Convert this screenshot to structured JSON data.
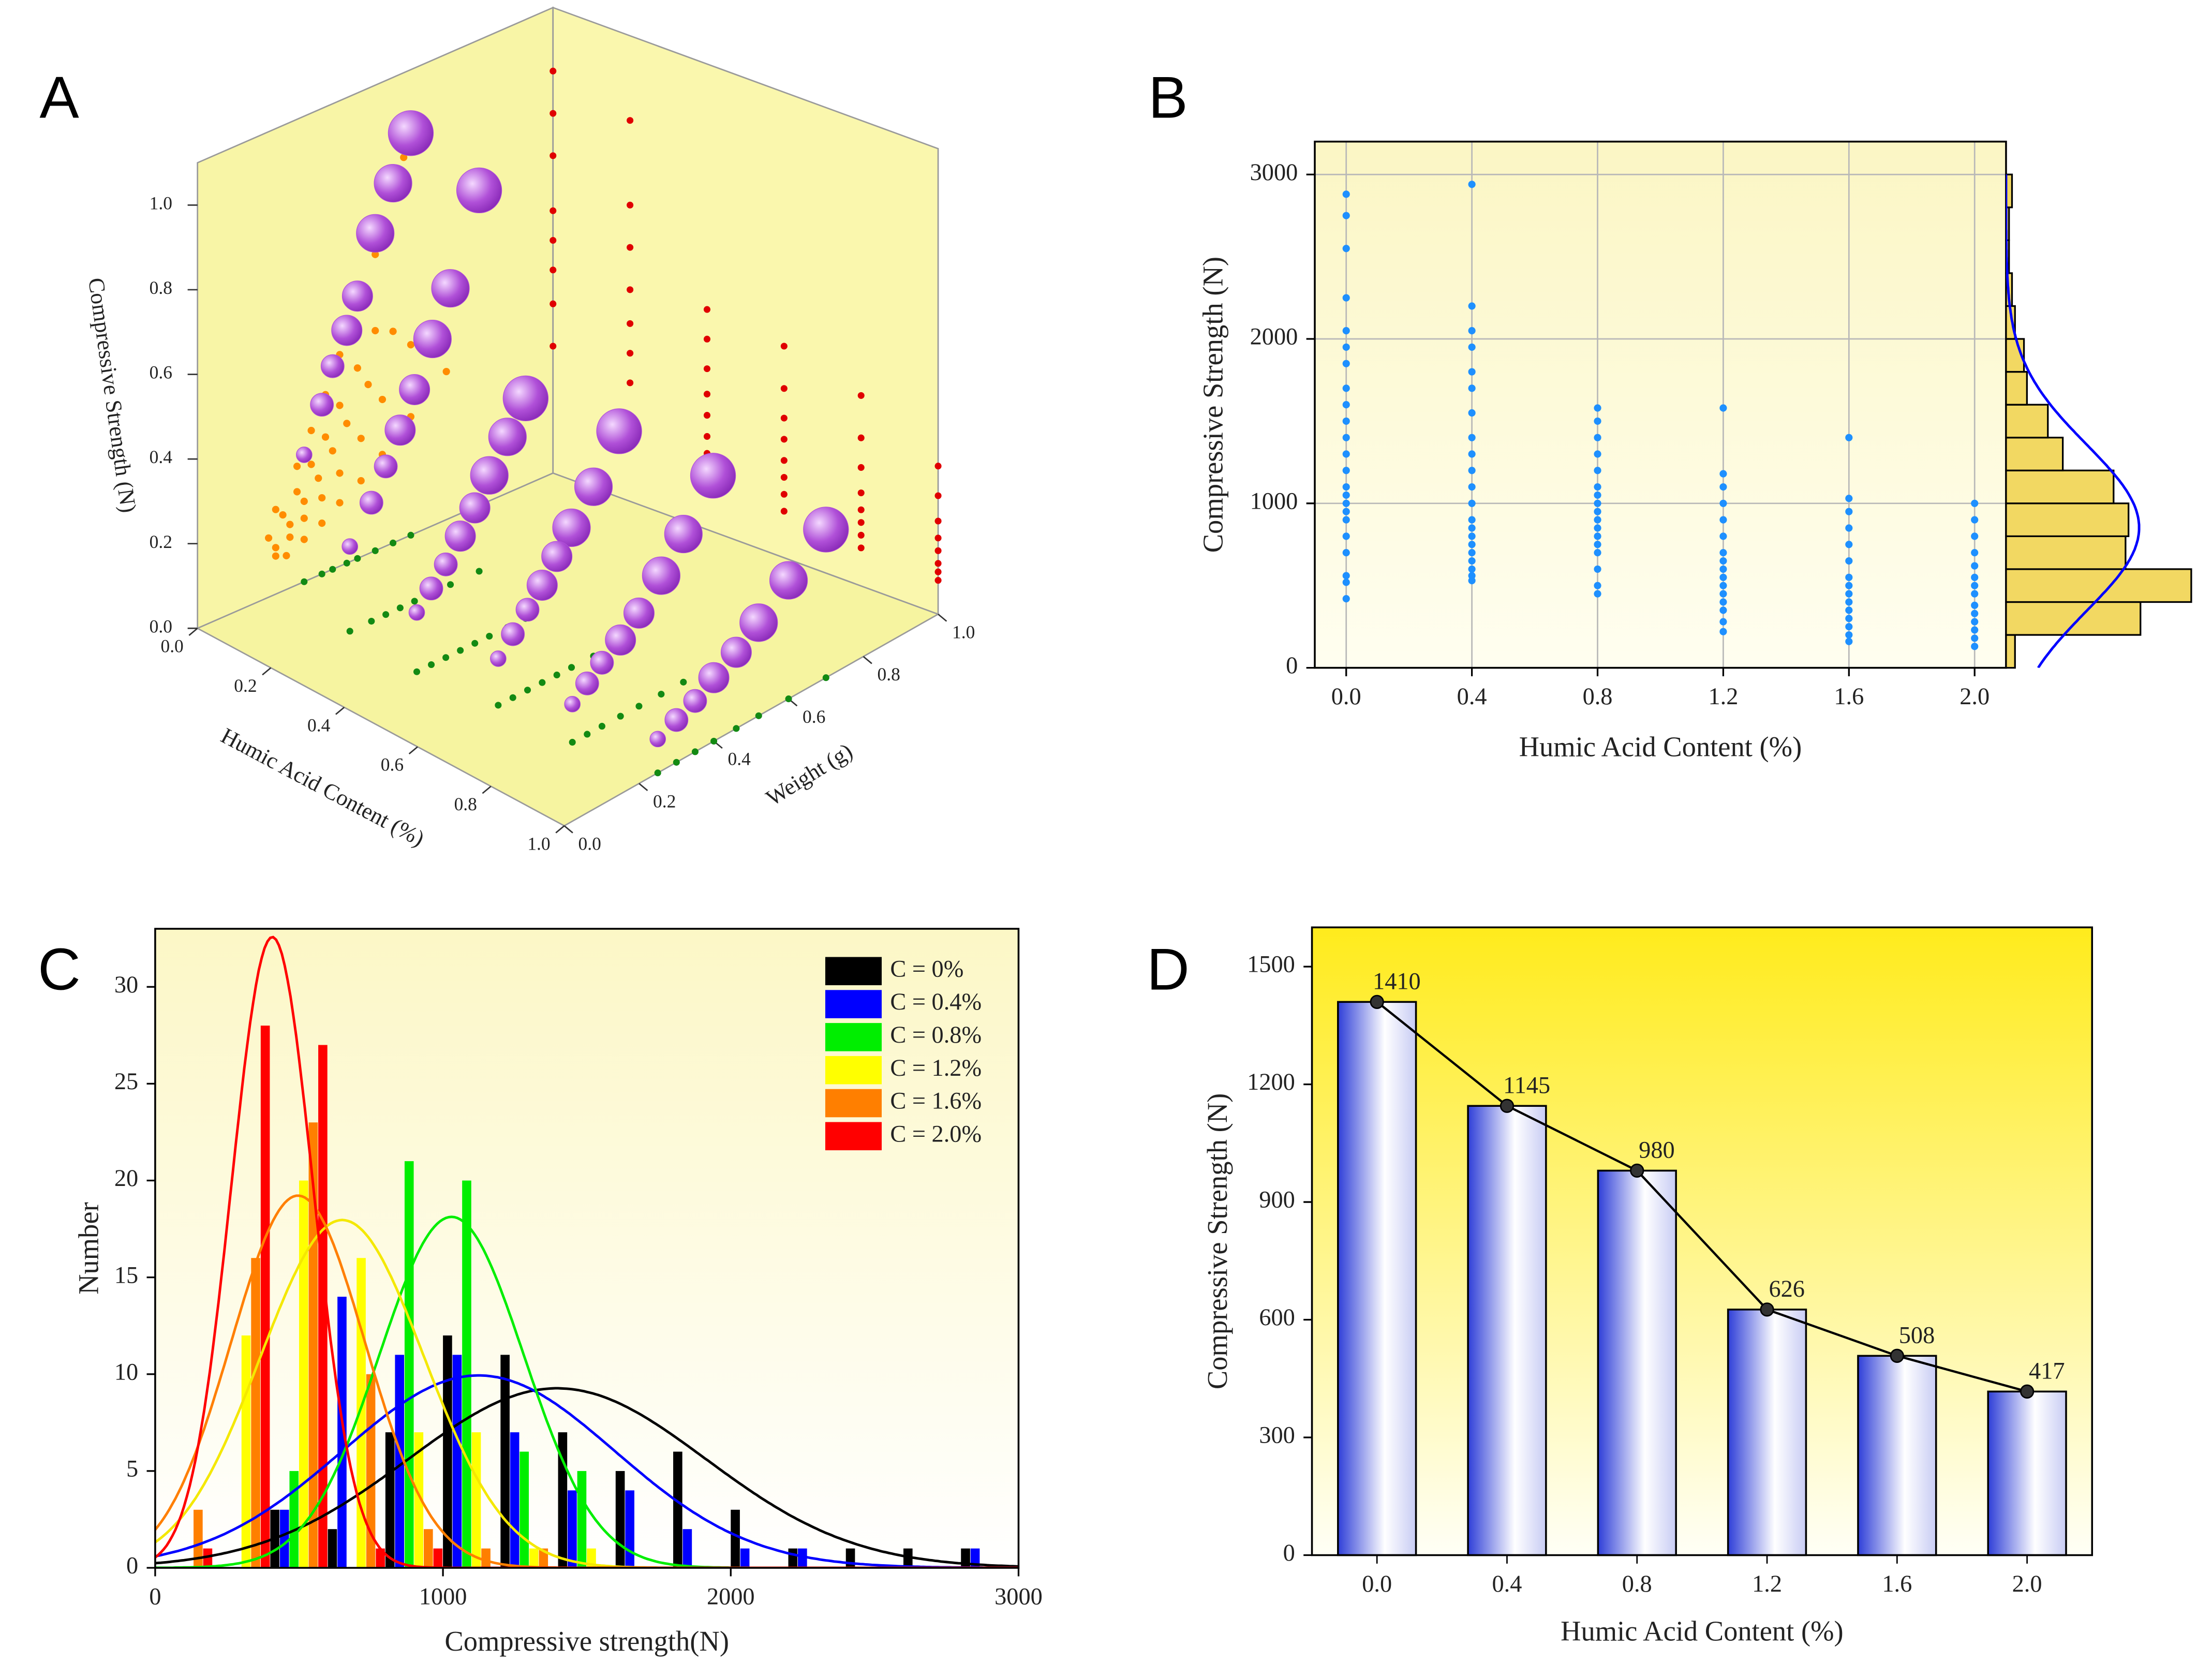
{
  "chart_data": [
    {
      "type": "scatter3d",
      "label": "A",
      "xlabel": "Humic Acid Content (%)",
      "ylabel": "Weight (g)",
      "zlabel": "Compressive Strength (N)",
      "xlim": [
        0,
        1.0
      ],
      "ylim": [
        0,
        1.0
      ],
      "zlim": [
        0,
        1.1
      ],
      "xticks": [
        {
          "value": 0,
          "label": "0.0"
        },
        {
          "value": 0.2,
          "label": "0.2"
        },
        {
          "value": 0.4,
          "label": "0.4"
        },
        {
          "value": 0.6,
          "label": "0.6"
        },
        {
          "value": 0.8,
          "label": "0.8"
        },
        {
          "value": 1,
          "label": "1.0"
        }
      ],
      "yticks": [
        {
          "value": 0,
          "label": "0.0"
        },
        {
          "value": 0.2,
          "label": "0.2"
        },
        {
          "value": 0.4,
          "label": "0.4"
        },
        {
          "value": 0.6,
          "label": "0.6"
        },
        {
          "value": 0.8,
          "label": "0.8"
        },
        {
          "value": 1,
          "label": "1.0"
        }
      ],
      "zticks": [
        {
          "value": 0,
          "label": "0.0"
        },
        {
          "value": 0.2,
          "label": "0.2"
        },
        {
          "value": 0.4,
          "label": "0.4"
        },
        {
          "value": 0.6,
          "label": "0.6"
        },
        {
          "value": 0.8,
          "label": "0.8"
        },
        {
          "value": 1,
          "label": "1.0"
        }
      ],
      "projections": {
        "left_wall": "#ff8c00",
        "back_wall": "#e00000",
        "floor": "#138a13"
      },
      "series": [
        {
          "color": "#b050d8",
          "x": [
            0,
            0,
            0,
            0,
            0,
            0,
            0,
            0,
            0.2,
            0.2,
            0.2,
            0.2,
            0.2,
            0.2,
            0.2,
            0.2,
            0.4,
            0.4,
            0.4,
            0.4,
            0.4,
            0.4,
            0.4,
            0.4,
            0.6,
            0.6,
            0.6,
            0.6,
            0.6,
            0.6,
            0.6,
            0.6,
            0.8,
            0.8,
            0.8,
            0.8,
            0.8,
            0.8,
            0.8,
            0.8,
            1,
            1,
            1,
            1,
            1,
            1,
            1,
            1
          ],
          "y": [
            0.6,
            0.55,
            0.5,
            0.45,
            0.42,
            0.38,
            0.35,
            0.3,
            0.58,
            0.5,
            0.45,
            0.4,
            0.36,
            0.32,
            0.28,
            0.22,
            0.5,
            0.45,
            0.4,
            0.36,
            0.32,
            0.28,
            0.24,
            0.2,
            0.55,
            0.48,
            0.42,
            0.38,
            0.34,
            0.3,
            0.26,
            0.22,
            0.6,
            0.52,
            0.46,
            0.4,
            0.35,
            0.3,
            0.26,
            0.22,
            0.7,
            0.6,
            0.52,
            0.46,
            0.4,
            0.35,
            0.3,
            0.25
          ],
          "z": [
            0.95,
            0.85,
            0.75,
            0.62,
            0.55,
            0.48,
            0.4,
            0.3,
            0.9,
            0.7,
            0.6,
            0.5,
            0.42,
            0.35,
            0.28,
            0.2,
            0.52,
            0.45,
            0.38,
            0.32,
            0.27,
            0.22,
            0.18,
            0.14,
            0.5,
            0.4,
            0.33,
            0.28,
            0.23,
            0.19,
            0.15,
            0.11,
            0.45,
            0.35,
            0.28,
            0.22,
            0.18,
            0.15,
            0.12,
            0.09,
            0.35,
            0.28,
            0.22,
            0.18,
            0.15,
            0.12,
            0.1,
            0.08
          ],
          "sizes": [
            5,
            4,
            4,
            3,
            3,
            2,
            2,
            1,
            5,
            4,
            4,
            3,
            3,
            2,
            2,
            1,
            5,
            4,
            4,
            3,
            3,
            2,
            2,
            1,
            5,
            4,
            4,
            3,
            3,
            2,
            2,
            1,
            5,
            4,
            4,
            3,
            3,
            2,
            2,
            1,
            5,
            4,
            4,
            3,
            3,
            2,
            2,
            1
          ]
        }
      ]
    },
    {
      "type": "scatter_marginal",
      "label": "B",
      "xlabel": "Humic Acid Content (%)",
      "ylabel": "Compressive Strength (N)",
      "xlim": [
        -0.1,
        2.1
      ],
      "ylim": [
        0,
        3200
      ],
      "grid": true,
      "xticks": [
        {
          "value": 0,
          "label": "0.0"
        },
        {
          "value": 0.4,
          "label": "0.4"
        },
        {
          "value": 0.8,
          "label": "0.8"
        },
        {
          "value": 1.2,
          "label": "1.2"
        },
        {
          "value": 1.6,
          "label": "1.6"
        },
        {
          "value": 2,
          "label": "2.0"
        }
      ],
      "yticks": [
        0,
        1000,
        2000,
        3000
      ],
      "series": [
        {
          "color": "#1e90ff",
          "x": [
            0,
            0,
            0,
            0,
            0,
            0,
            0,
            0,
            0,
            0,
            0,
            0,
            0,
            0,
            0,
            0,
            0,
            0,
            0,
            0,
            0,
            0,
            0,
            0.4,
            0.4,
            0.4,
            0.4,
            0.4,
            0.4,
            0.4,
            0.4,
            0.4,
            0.4,
            0.4,
            0.4,
            0.4,
            0.4,
            0.4,
            0.4,
            0.4,
            0.4,
            0.4,
            0.4,
            0.4,
            0.8,
            0.8,
            0.8,
            0.8,
            0.8,
            0.8,
            0.8,
            0.8,
            0.8,
            0.8,
            0.8,
            0.8,
            0.8,
            0.8,
            0.8,
            0.8,
            0.8,
            1.2,
            1.2,
            1.2,
            1.2,
            1.2,
            1.2,
            1.2,
            1.2,
            1.2,
            1.2,
            1.2,
            1.2,
            1.2,
            1.2,
            1.2,
            1.2,
            1.6,
            1.6,
            1.6,
            1.6,
            1.6,
            1.6,
            1.6,
            1.6,
            1.6,
            1.6,
            1.6,
            1.6,
            1.6,
            1.6,
            1.6,
            2,
            2,
            2,
            2,
            2,
            2,
            2,
            2,
            2,
            2,
            2,
            2,
            2,
            2
          ],
          "y": [
            420,
            520,
            560,
            700,
            800,
            900,
            950,
            1000,
            1050,
            1100,
            1200,
            1300,
            1400,
            1500,
            1600,
            1700,
            1850,
            1950,
            2050,
            2250,
            2550,
            2750,
            2880,
            530,
            560,
            600,
            650,
            700,
            750,
            800,
            850,
            900,
            1000,
            1100,
            1200,
            1300,
            1400,
            1550,
            1700,
            1800,
            1950,
            2050,
            2200,
            2940,
            450,
            500,
            600,
            700,
            750,
            800,
            850,
            900,
            950,
            1000,
            1050,
            1100,
            1200,
            1300,
            1400,
            1500,
            1580,
            220,
            280,
            350,
            400,
            450,
            500,
            550,
            600,
            650,
            700,
            800,
            900,
            1000,
            1100,
            1180,
            1580,
            160,
            200,
            250,
            300,
            350,
            400,
            450,
            500,
            550,
            650,
            750,
            850,
            950,
            1030,
            1400,
            130,
            180,
            230,
            280,
            330,
            380,
            450,
            500,
            550,
            620,
            700,
            800,
            900,
            1000
          ]
        }
      ],
      "histogram": {
        "color": "#f2d862",
        "curve_color": "#0000ff",
        "xlim": [
          0,
          68
        ],
        "bins": [
          0,
          200,
          400,
          600,
          800,
          1000,
          1200,
          1400,
          1600,
          1800,
          2000,
          2200,
          2400,
          2600,
          2800,
          3000
        ],
        "counts": [
          3,
          45,
          62,
          40,
          41,
          36,
          19,
          14,
          7,
          6,
          3,
          2,
          1,
          1,
          2
        ]
      }
    },
    {
      "type": "histogram",
      "label": "C",
      "xlabel": "Compressive strength(N)",
      "ylabel": "Number",
      "xlim": [
        0,
        3000
      ],
      "ylim": [
        0,
        33
      ],
      "xticks": [
        0,
        1000,
        2000,
        3000
      ],
      "yticks": [
        0,
        5,
        10,
        15,
        20,
        25,
        30
      ],
      "legend": "upper right",
      "bins": [
        0,
        200,
        400,
        600,
        800,
        1000,
        1200,
        1400,
        1600,
        1800,
        2000,
        2200,
        2400,
        2600,
        2800,
        3000
      ],
      "series": [
        {
          "name": "C = 0%",
          "color": "#000000",
          "values": [
            0,
            0,
            3,
            2,
            7,
            12,
            11,
            7,
            5,
            6,
            3,
            1,
            1,
            1,
            1
          ]
        },
        {
          "name": "C = 0.4%",
          "color": "#0000ff",
          "values": [
            0,
            0,
            3,
            14,
            11,
            11,
            7,
            4,
            4,
            2,
            1,
            1,
            0,
            0,
            1
          ]
        },
        {
          "name": "C = 0.8%",
          "color": "#00ee00",
          "values": [
            0,
            0,
            5,
            0,
            21,
            20,
            6,
            5,
            0,
            0,
            0,
            0,
            0,
            0,
            0
          ]
        },
        {
          "name": "C = 1.2%",
          "color": "#ffff00",
          "values": [
            0,
            12,
            20,
            16,
            7,
            7,
            1,
            1,
            0,
            0,
            0,
            0,
            0,
            0,
            0
          ]
        },
        {
          "name": "C = 1.6%",
          "color": "#ff7f00",
          "values": [
            3,
            16,
            23,
            10,
            2,
            1,
            1,
            0,
            0,
            0,
            0,
            0,
            0,
            0,
            0
          ]
        },
        {
          "name": "C = 2.0%",
          "color": "#ff0000",
          "values": [
            1,
            28,
            27,
            1,
            1,
            0,
            0,
            0,
            0,
            0,
            0,
            0,
            0,
            0,
            0
          ]
        }
      ]
    },
    {
      "type": "bar_line",
      "label": "D",
      "xlabel": "Humic Acid Content (%)",
      "ylabel": "Compressive Strength (N)",
      "categories": [
        "0.0",
        "0.4",
        "0.8",
        "1.2",
        "1.6",
        "2.0"
      ],
      "values": [
        1410,
        1145,
        980,
        626,
        508,
        417
      ],
      "ylim": [
        0,
        1600
      ],
      "yticks": [
        0,
        300,
        600,
        900,
        1200,
        1500
      ],
      "color": "#2f3fd8",
      "line_color": "#000000"
    }
  ]
}
